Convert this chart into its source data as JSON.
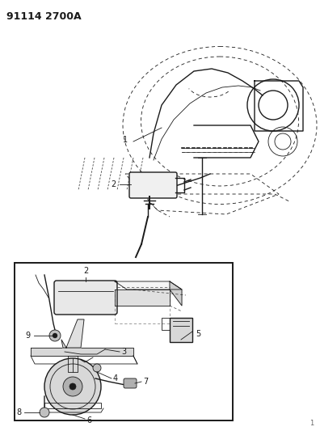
{
  "title": "91114 2700A",
  "bg_color": "#ffffff",
  "fig_width": 3.96,
  "fig_height": 5.33,
  "dpi": 100,
  "line_color": "#1a1a1a",
  "gray_color": "#888888",
  "light_gray": "#cccccc",
  "title_fontsize": 9,
  "label_fontsize": 7
}
